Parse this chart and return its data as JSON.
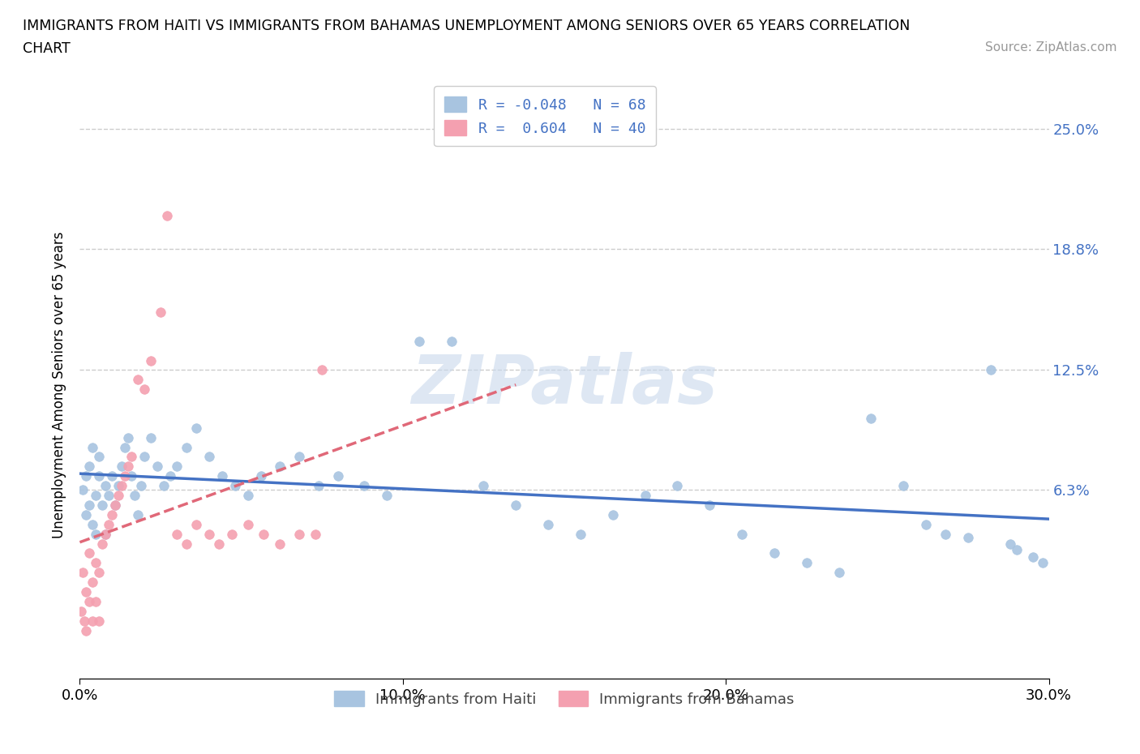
{
  "title_line1": "IMMIGRANTS FROM HAITI VS IMMIGRANTS FROM BAHAMAS UNEMPLOYMENT AMONG SENIORS OVER 65 YEARS CORRELATION",
  "title_line2": "CHART",
  "source_text": "Source: ZipAtlas.com",
  "ylabel": "Unemployment Among Seniors over 65 years",
  "xlim": [
    0.0,
    0.3
  ],
  "ylim": [
    -0.035,
    0.27
  ],
  "ytick_vals": [
    0.063,
    0.125,
    0.188,
    0.25
  ],
  "ytick_labels": [
    "6.3%",
    "12.5%",
    "18.8%",
    "25.0%"
  ],
  "xticks": [
    0.0,
    0.1,
    0.2,
    0.3
  ],
  "xtick_labels": [
    "0.0%",
    "10.0%",
    "20.0%",
    "30.0%"
  ],
  "haiti_color": "#a8c4e0",
  "bahamas_color": "#f4a0b0",
  "haiti_line_color": "#4472c4",
  "bahamas_line_color": "#e06878",
  "haiti_R": -0.048,
  "haiti_N": 68,
  "bahamas_R": 0.604,
  "bahamas_N": 40,
  "legend_label_haiti": "R = -0.048   N = 68",
  "legend_label_bahamas": "R =  0.604   N = 40",
  "bottom_legend_haiti": "Immigrants from Haiti",
  "bottom_legend_bahamas": "Immigrants from Bahamas",
  "haiti_scatter_x": [
    0.001,
    0.002,
    0.002,
    0.003,
    0.003,
    0.004,
    0.004,
    0.005,
    0.005,
    0.006,
    0.006,
    0.007,
    0.008,
    0.008,
    0.009,
    0.01,
    0.011,
    0.012,
    0.013,
    0.014,
    0.015,
    0.016,
    0.017,
    0.018,
    0.019,
    0.02,
    0.022,
    0.024,
    0.026,
    0.028,
    0.03,
    0.033,
    0.036,
    0.04,
    0.044,
    0.048,
    0.052,
    0.056,
    0.062,
    0.068,
    0.074,
    0.08,
    0.088,
    0.095,
    0.105,
    0.115,
    0.125,
    0.135,
    0.145,
    0.155,
    0.165,
    0.175,
    0.185,
    0.195,
    0.205,
    0.215,
    0.225,
    0.235,
    0.245,
    0.255,
    0.262,
    0.268,
    0.275,
    0.282,
    0.288,
    0.29,
    0.295,
    0.298
  ],
  "haiti_scatter_y": [
    0.063,
    0.07,
    0.05,
    0.075,
    0.055,
    0.085,
    0.045,
    0.06,
    0.04,
    0.07,
    0.08,
    0.055,
    0.065,
    0.04,
    0.06,
    0.07,
    0.055,
    0.065,
    0.075,
    0.085,
    0.09,
    0.07,
    0.06,
    0.05,
    0.065,
    0.08,
    0.09,
    0.075,
    0.065,
    0.07,
    0.075,
    0.085,
    0.095,
    0.08,
    0.07,
    0.065,
    0.06,
    0.07,
    0.075,
    0.08,
    0.065,
    0.07,
    0.065,
    0.06,
    0.14,
    0.14,
    0.065,
    0.055,
    0.045,
    0.04,
    0.05,
    0.06,
    0.065,
    0.055,
    0.04,
    0.03,
    0.025,
    0.02,
    0.1,
    0.065,
    0.045,
    0.04,
    0.038,
    0.125,
    0.035,
    0.032,
    0.028,
    0.025
  ],
  "bahamas_scatter_x": [
    0.0005,
    0.001,
    0.0015,
    0.002,
    0.002,
    0.003,
    0.003,
    0.004,
    0.004,
    0.005,
    0.005,
    0.006,
    0.006,
    0.007,
    0.008,
    0.009,
    0.01,
    0.011,
    0.012,
    0.013,
    0.014,
    0.015,
    0.016,
    0.018,
    0.02,
    0.022,
    0.025,
    0.027,
    0.03,
    0.033,
    0.036,
    0.04,
    0.043,
    0.047,
    0.052,
    0.057,
    0.062,
    0.068,
    0.073,
    0.075
  ],
  "bahamas_scatter_y": [
    0.0,
    0.02,
    -0.005,
    0.01,
    -0.01,
    0.03,
    0.005,
    0.015,
    -0.005,
    0.025,
    0.005,
    0.02,
    -0.005,
    0.035,
    0.04,
    0.045,
    0.05,
    0.055,
    0.06,
    0.065,
    0.07,
    0.075,
    0.08,
    0.12,
    0.115,
    0.13,
    0.155,
    0.205,
    0.04,
    0.035,
    0.045,
    0.04,
    0.035,
    0.04,
    0.045,
    0.04,
    0.035,
    0.04,
    0.04,
    0.125
  ],
  "watermark_text": "ZIPatlas",
  "watermark_color": "#c8d8ec",
  "background_color": "#ffffff",
  "grid_color": "#cccccc"
}
